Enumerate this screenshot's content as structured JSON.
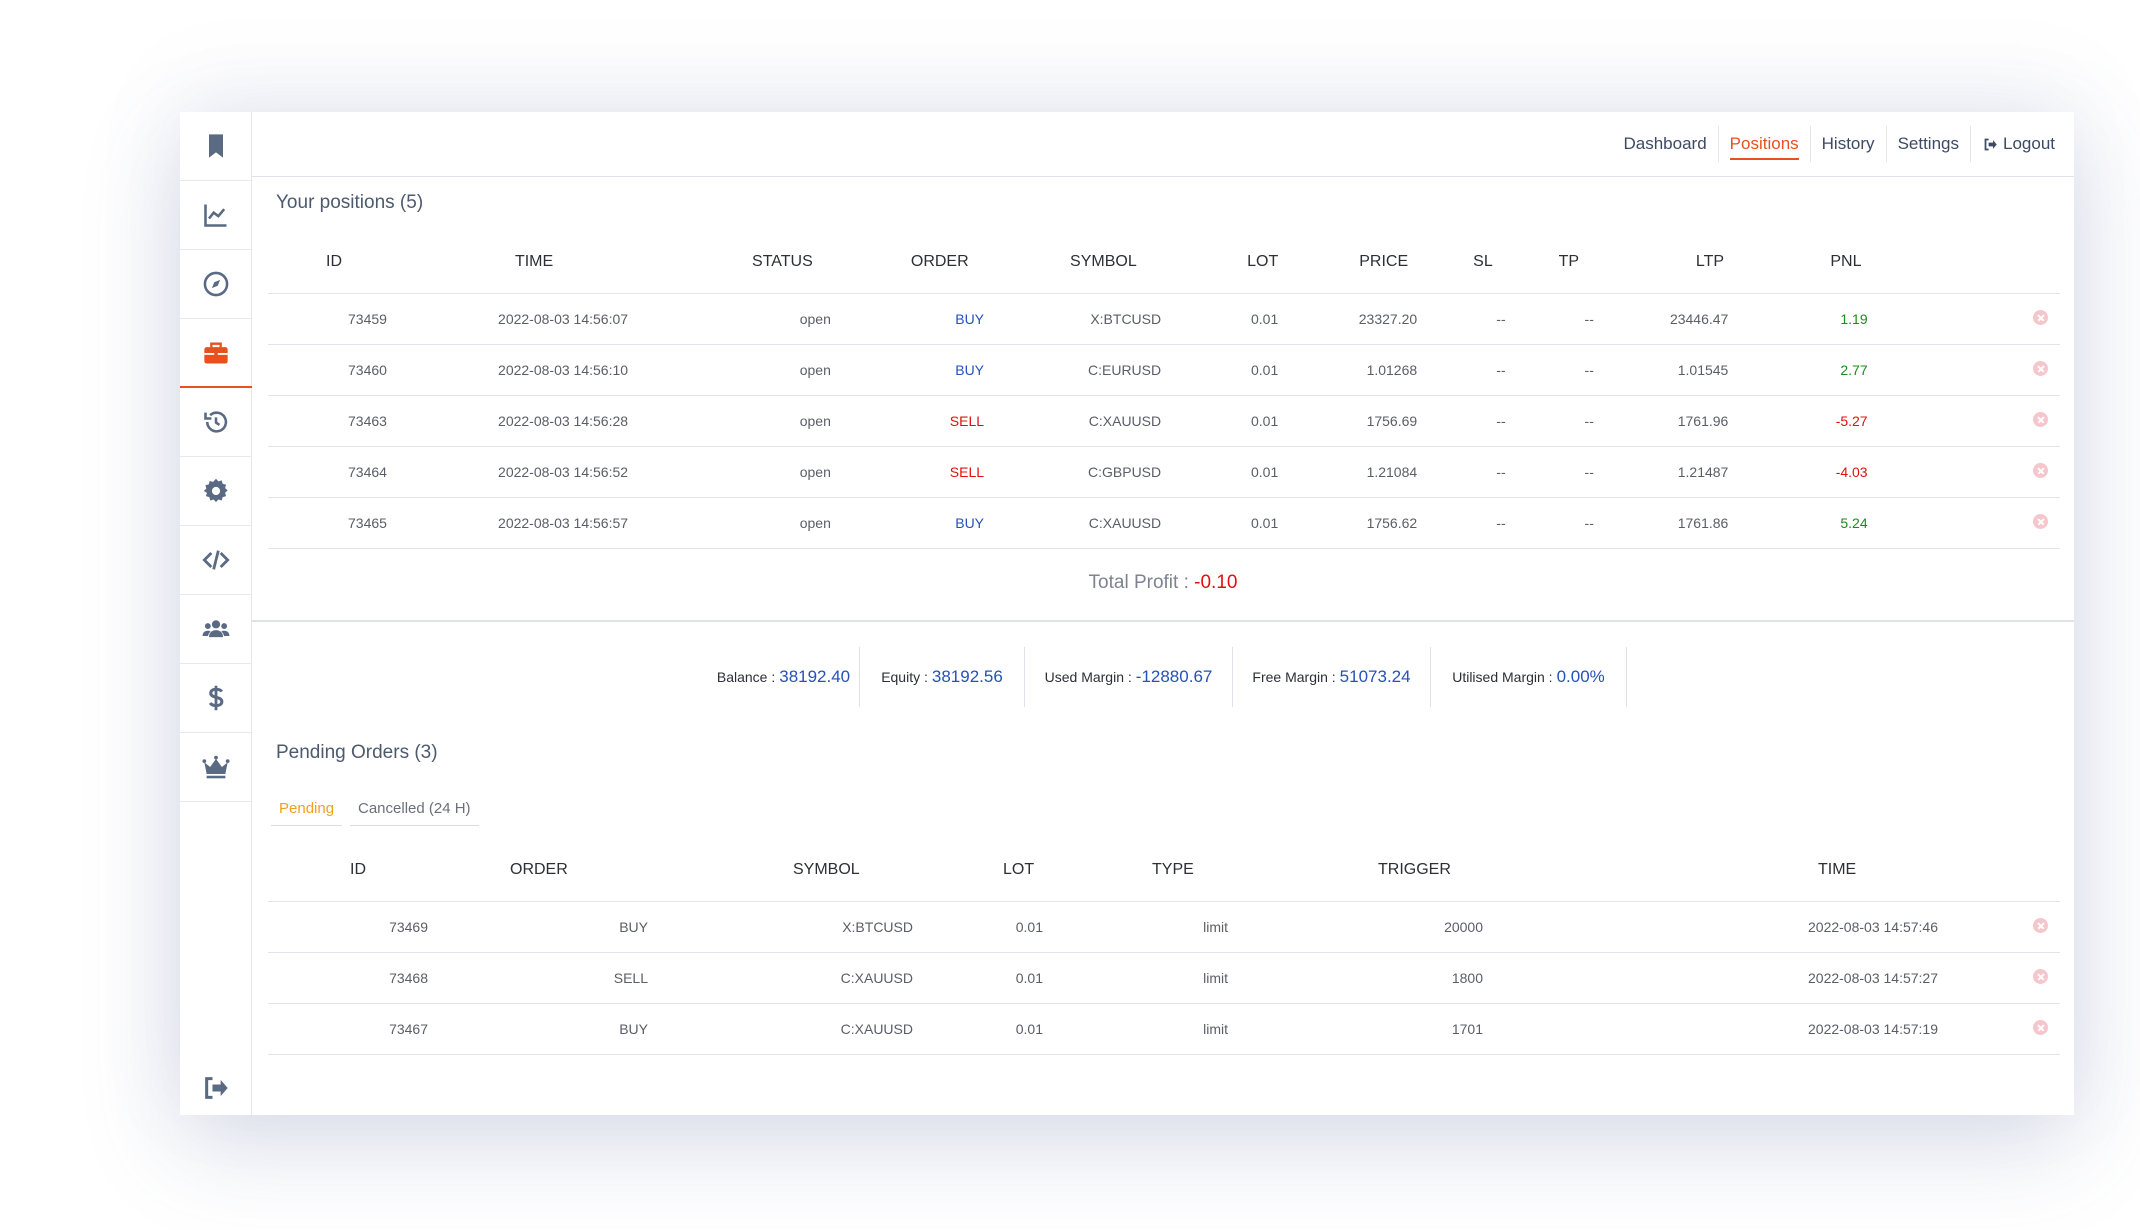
{
  "nav": {
    "dashboard": "Dashboard",
    "positions": "Positions",
    "history": "History",
    "settings": "Settings",
    "logout": "Logout"
  },
  "sidebar": {
    "items": [
      "bookmark-icon",
      "chart-line-icon",
      "compass-icon",
      "briefcase-icon",
      "history-icon",
      "gear-icon",
      "code-icon",
      "users-icon",
      "dollar-icon",
      "crown-icon"
    ],
    "active": "briefcase-icon",
    "logout_icon": "sign-out-icon"
  },
  "colors": {
    "accent": "#e8501e",
    "icon": "#5a6a82",
    "buy": "#2552b8",
    "sell": "#e01010",
    "profit": "#1e8a1e",
    "loss": "#e01010",
    "pending_tab": "#f0a020",
    "stat_value": "#2552b8"
  },
  "positions": {
    "title": "Your positions (5)",
    "headers": [
      "ID",
      "TIME",
      "STATUS",
      "ORDER",
      "SYMBOL",
      "LOT",
      "PRICE",
      "SL",
      "TP",
      "LTP",
      "PNL"
    ],
    "rows": [
      {
        "id": "73459",
        "time": "2022-08-03 14:56:07",
        "status": "open",
        "order": "BUY",
        "symbol": "X:BTCUSD",
        "lot": "0.01",
        "price": "23327.20",
        "sl": "--",
        "tp": "--",
        "ltp": "23446.47",
        "pnl": "1.19"
      },
      {
        "id": "73460",
        "time": "2022-08-03 14:56:10",
        "status": "open",
        "order": "BUY",
        "symbol": "C:EURUSD",
        "lot": "0.01",
        "price": "1.01268",
        "sl": "--",
        "tp": "--",
        "ltp": "1.01545",
        "pnl": "2.77"
      },
      {
        "id": "73463",
        "time": "2022-08-03 14:56:28",
        "status": "open",
        "order": "SELL",
        "symbol": "C:XAUUSD",
        "lot": "0.01",
        "price": "1756.69",
        "sl": "--",
        "tp": "--",
        "ltp": "1761.96",
        "pnl": "-5.27"
      },
      {
        "id": "73464",
        "time": "2022-08-03 14:56:52",
        "status": "open",
        "order": "SELL",
        "symbol": "C:GBPUSD",
        "lot": "0.01",
        "price": "1.21084",
        "sl": "--",
        "tp": "--",
        "ltp": "1.21487",
        "pnl": "-4.03"
      },
      {
        "id": "73465",
        "time": "2022-08-03 14:56:57",
        "status": "open",
        "order": "BUY",
        "symbol": "C:XAUUSD",
        "lot": "0.01",
        "price": "1756.62",
        "sl": "--",
        "tp": "--",
        "ltp": "1761.86",
        "pnl": "5.24"
      }
    ],
    "total_label": "Total Profit : ",
    "total_value": "-0.10"
  },
  "stats": {
    "balance_label": "Balance : ",
    "balance": "38192.40",
    "equity_label": "Equity : ",
    "equity": "38192.56",
    "used_margin_label": "Used Margin : ",
    "used_margin": "-12880.67",
    "free_margin_label": "Free Margin : ",
    "free_margin": "51073.24",
    "utilised_margin_label": "Utilised Margin : ",
    "utilised_margin": "0.00%"
  },
  "pending": {
    "title": "Pending Orders (3)",
    "tabs": [
      "Pending",
      "Cancelled (24 H)"
    ],
    "headers": [
      "ID",
      "ORDER",
      "SYMBOL",
      "LOT",
      "TYPE",
      "TRIGGER",
      "TIME"
    ],
    "rows": [
      {
        "id": "73469",
        "order": "BUY",
        "symbol": "X:BTCUSD",
        "lot": "0.01",
        "type": "limit",
        "trigger": "20000",
        "time": "2022-08-03 14:57:46"
      },
      {
        "id": "73468",
        "order": "SELL",
        "symbol": "C:XAUUSD",
        "lot": "0.01",
        "type": "limit",
        "trigger": "1800",
        "time": "2022-08-03 14:57:27"
      },
      {
        "id": "73467",
        "order": "BUY",
        "symbol": "C:XAUUSD",
        "lot": "0.01",
        "type": "limit",
        "trigger": "1701",
        "time": "2022-08-03 14:57:19"
      }
    ]
  }
}
